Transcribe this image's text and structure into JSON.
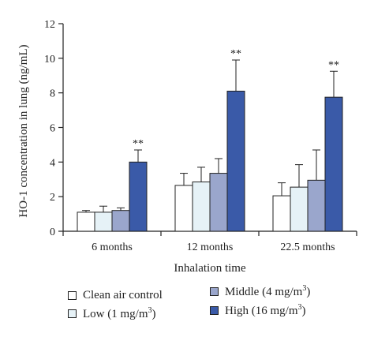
{
  "chart_data": {
    "type": "bar",
    "categories": [
      "6 months",
      "12 months",
      "22.5 months"
    ],
    "series": [
      {
        "name": "Clean air control",
        "color": "#ffffff",
        "values": [
          1.1,
          2.65,
          2.05
        ],
        "errors": [
          0.1,
          0.7,
          0.75
        ],
        "significance": [
          "",
          "",
          ""
        ]
      },
      {
        "name": "Low (1 mg/m³)",
        "color": "#e6f2f7",
        "values": [
          1.1,
          2.85,
          2.55
        ],
        "errors": [
          0.35,
          0.85,
          1.3
        ],
        "significance": [
          "",
          "",
          ""
        ]
      },
      {
        "name": "Middle (4 mg/m³)",
        "color": "#9aa6cc",
        "values": [
          1.2,
          3.35,
          2.95
        ],
        "errors": [
          0.15,
          0.85,
          1.75
        ],
        "significance": [
          "",
          "",
          ""
        ]
      },
      {
        "name": "High (16 mg/m³)",
        "color": "#3a5aa8",
        "values": [
          4.0,
          8.1,
          7.75
        ],
        "errors": [
          0.7,
          1.8,
          1.5
        ],
        "significance": [
          "**",
          "**",
          "**"
        ]
      }
    ],
    "xlabel": "Inhalation time",
    "ylabel": "HO-1 concentration in lung (ng/mL)",
    "ylim": [
      0,
      12
    ],
    "yticks": [
      0,
      2,
      4,
      6,
      8,
      10,
      12
    ],
    "legend_position": "bottom",
    "grid": false
  },
  "legend": {
    "items": [
      {
        "prefix": "Clean air control",
        "sup": "",
        "suffix": ""
      },
      {
        "prefix": "Middle (4 mg/m",
        "sup": "3",
        "suffix": ")"
      },
      {
        "prefix": "Low (1 mg/m",
        "sup": "3",
        "suffix": ")"
      },
      {
        "prefix": "High (16 mg/m",
        "sup": "3",
        "suffix": ")"
      }
    ]
  }
}
